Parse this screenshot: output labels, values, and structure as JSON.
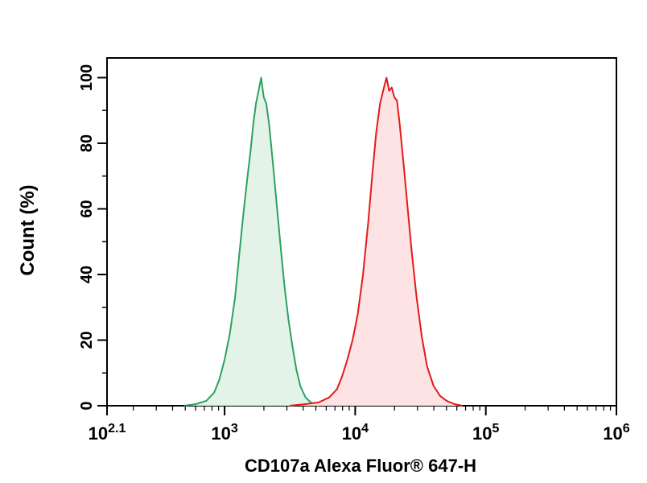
{
  "chart_data": {
    "type": "area",
    "title": "",
    "xlabel": "CD107a Alexa Fluor® 647-H",
    "ylabel": "Count (%)",
    "x_scale": "log10",
    "xlim": [
      2.1,
      6
    ],
    "ylim": [
      0,
      106
    ],
    "x_ticks": [
      {
        "base": "10",
        "exp": "2.1",
        "value": 2.1
      },
      {
        "base": "10",
        "exp": "3",
        "value": 3
      },
      {
        "base": "10",
        "exp": "4",
        "value": 4
      },
      {
        "base": "10",
        "exp": "5",
        "value": 5
      },
      {
        "base": "10",
        "exp": "6",
        "value": 6
      }
    ],
    "y_ticks": [
      "0",
      "20",
      "40",
      "60",
      "80",
      "100"
    ],
    "grid": false,
    "legend": "none",
    "series": [
      {
        "color": "#2ca25f",
        "fill": "#e3f3e8",
        "points": [
          [
            2.69,
            0
          ],
          [
            2.78,
            0.5
          ],
          [
            2.86,
            1.5
          ],
          [
            2.92,
            4
          ],
          [
            2.96,
            8
          ],
          [
            3.0,
            14
          ],
          [
            3.04,
            22
          ],
          [
            3.08,
            33
          ],
          [
            3.11,
            45
          ],
          [
            3.14,
            57
          ],
          [
            3.17,
            68
          ],
          [
            3.2,
            78
          ],
          [
            3.22,
            86
          ],
          [
            3.24,
            92
          ],
          [
            3.26,
            96
          ],
          [
            3.28,
            100
          ],
          [
            3.3,
            94
          ],
          [
            3.32,
            92
          ],
          [
            3.34,
            86
          ],
          [
            3.37,
            74
          ],
          [
            3.4,
            61
          ],
          [
            3.43,
            48
          ],
          [
            3.46,
            36
          ],
          [
            3.49,
            26
          ],
          [
            3.52,
            18
          ],
          [
            3.55,
            11
          ],
          [
            3.58,
            6
          ],
          [
            3.62,
            2.5
          ],
          [
            3.66,
            1
          ],
          [
            3.72,
            0
          ]
        ]
      },
      {
        "color": "#e31a1c",
        "fill": "#fde3e3",
        "points": [
          [
            3.5,
            0
          ],
          [
            3.62,
            0.5
          ],
          [
            3.72,
            1
          ],
          [
            3.8,
            2.5
          ],
          [
            3.86,
            5
          ],
          [
            3.9,
            9
          ],
          [
            3.94,
            14
          ],
          [
            3.98,
            20
          ],
          [
            4.02,
            28
          ],
          [
            4.06,
            40
          ],
          [
            4.1,
            56
          ],
          [
            4.13,
            70
          ],
          [
            4.16,
            83
          ],
          [
            4.19,
            92
          ],
          [
            4.22,
            97
          ],
          [
            4.24,
            100
          ],
          [
            4.26,
            96
          ],
          [
            4.28,
            97
          ],
          [
            4.3,
            94
          ],
          [
            4.32,
            93
          ],
          [
            4.34,
            86
          ],
          [
            4.37,
            74
          ],
          [
            4.4,
            61
          ],
          [
            4.43,
            48
          ],
          [
            4.47,
            33
          ],
          [
            4.51,
            21
          ],
          [
            4.55,
            12
          ],
          [
            4.6,
            6
          ],
          [
            4.65,
            3
          ],
          [
            4.7,
            1.5
          ],
          [
            4.76,
            0.5
          ],
          [
            4.82,
            0
          ]
        ]
      }
    ]
  }
}
